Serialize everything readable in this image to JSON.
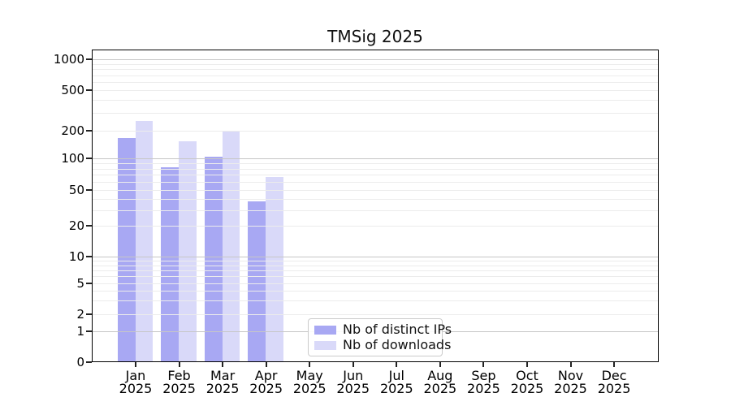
{
  "chart_data": {
    "type": "bar",
    "title": "TMSig 2025",
    "months": [
      "Jan",
      "Feb",
      "Mar",
      "Apr",
      "May",
      "Jun",
      "Jul",
      "Aug",
      "Sep",
      "Oct",
      "Nov",
      "Dec"
    ],
    "year_label": "2025",
    "series": [
      {
        "name": "Nb of distinct IPs",
        "color": "#a8a8f3",
        "values": [
          165,
          82,
          104,
          37,
          null,
          null,
          null,
          null,
          null,
          null,
          null,
          null
        ]
      },
      {
        "name": "Nb of downloads",
        "color": "#d9d9f9",
        "values": [
          250,
          155,
          197,
          66,
          null,
          null,
          null,
          null,
          null,
          null,
          null,
          null
        ]
      }
    ],
    "yscale": "symlog",
    "ylim": [
      0,
      1300
    ],
    "y_tick_labels": [
      0,
      1,
      2,
      5,
      10,
      20,
      50,
      100,
      200,
      500,
      1000
    ],
    "y_major_gridlines": [
      1,
      10,
      100,
      1000
    ],
    "grid": true,
    "legend_position": "lower center inside plot",
    "colors": {
      "grid_major": "#c6c6c6",
      "grid_minor": "#ececec",
      "spine": "#000000",
      "bar_dark": "#a8a8f3",
      "bar_light": "#d9d9f9"
    }
  }
}
